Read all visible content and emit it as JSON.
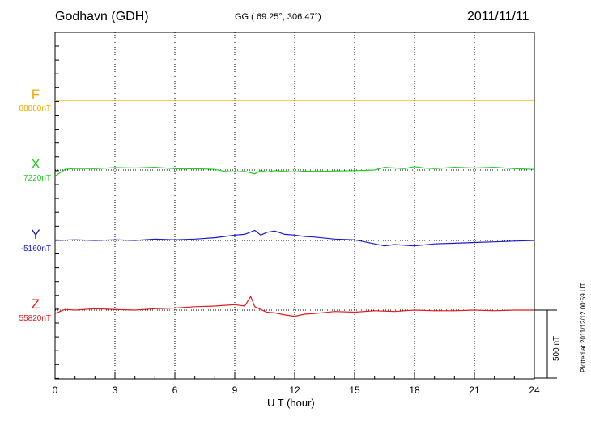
{
  "header": {
    "station": "Godhavn (GDH)",
    "coords": "GG ( 69.25°, 306.47°)",
    "date": "2011/11/11"
  },
  "footer": {
    "plotted_at": "Plotted at 2011/12/12 00:59 UT",
    "scale_label": "500 nT"
  },
  "colors": {
    "F": "#f0a800",
    "X": "#22cc22",
    "Y": "#1a1acc",
    "Z": "#dd1c1c"
  },
  "chart_data": {
    "type": "line",
    "title": "Godhavn (GDH)",
    "xlabel": "U T (hour)",
    "ylabel": "",
    "xlim": [
      0,
      24
    ],
    "x_ticks": [
      0,
      3,
      6,
      9,
      12,
      15,
      18,
      21,
      24
    ],
    "scale_bar_nT": 500,
    "grid": true,
    "series": [
      {
        "name": "F",
        "baseline_label": "88880nT",
        "x": [
          0,
          24
        ],
        "y": [
          0,
          0
        ]
      },
      {
        "name": "X",
        "baseline_label": "7220nT",
        "x": [
          0,
          0.3,
          0.5,
          1,
          2,
          3,
          4,
          5,
          6,
          6.5,
          7,
          8,
          8.5,
          9,
          9.5,
          10,
          10.3,
          10.6,
          11,
          11.5,
          12,
          12.5,
          13,
          14,
          15,
          16,
          16.5,
          17,
          17.5,
          18,
          18.5,
          19,
          20,
          21,
          22,
          23,
          24
        ],
        "y": [
          -45,
          -15,
          5,
          12,
          10,
          18,
          15,
          20,
          10,
          8,
          10,
          5,
          -10,
          -15,
          -10,
          -28,
          -5,
          -15,
          -5,
          -10,
          -15,
          -8,
          -10,
          -8,
          -5,
          0,
          20,
          15,
          10,
          25,
          15,
          10,
          20,
          15,
          20,
          10,
          5
        ]
      },
      {
        "name": "Y",
        "baseline_label": "-5160nT",
        "x": [
          0,
          1,
          2,
          3,
          4,
          5,
          6,
          7,
          8,
          8.5,
          9,
          9.5,
          10,
          10.3,
          10.6,
          11,
          11.5,
          12,
          12.5,
          13,
          14,
          15,
          16,
          16.5,
          17,
          18,
          19,
          20,
          21,
          22,
          23,
          24
        ],
        "y": [
          0,
          5,
          0,
          5,
          0,
          10,
          5,
          10,
          20,
          30,
          40,
          45,
          75,
          40,
          60,
          70,
          45,
          40,
          30,
          25,
          10,
          5,
          -25,
          -40,
          -30,
          -40,
          -25,
          -20,
          -15,
          -10,
          -5,
          0
        ]
      },
      {
        "name": "Z",
        "baseline_label": "55820nT",
        "x": [
          0,
          0.5,
          1,
          2,
          3,
          4,
          5,
          6,
          7,
          8,
          8.5,
          9,
          9.5,
          9.8,
          10,
          10.3,
          10.6,
          11,
          11.5,
          12,
          12.5,
          13,
          14,
          15,
          16,
          17,
          18,
          19,
          20,
          21,
          22,
          23,
          24
        ],
        "y": [
          -25,
          5,
          0,
          10,
          5,
          0,
          10,
          15,
          25,
          30,
          35,
          40,
          30,
          100,
          25,
          5,
          -15,
          -20,
          -35,
          -45,
          -30,
          -25,
          -10,
          -15,
          -5,
          -10,
          0,
          -5,
          -5,
          0,
          -5,
          0,
          0
        ]
      }
    ]
  }
}
